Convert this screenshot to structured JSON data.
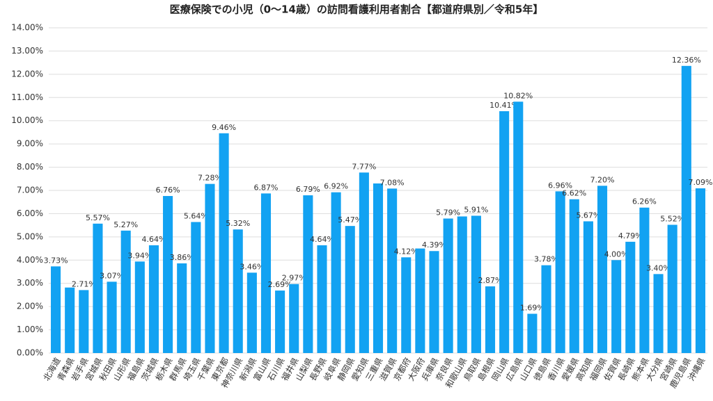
{
  "chart_data": {
    "type": "bar",
    "title": "医療保険での小児（0～14歳）の訪問看護利用者割合【都道府県別／令和5年】",
    "categories": [
      "北海道",
      "青森県",
      "岩手県",
      "宮城県",
      "秋田県",
      "山形県",
      "福島県",
      "茨城県",
      "栃木県",
      "群馬県",
      "埼玉県",
      "千葉県",
      "東京都",
      "神奈川県",
      "新潟県",
      "富山県",
      "石川県",
      "福井県",
      "山梨県",
      "長野県",
      "岐阜県",
      "静岡県",
      "愛知県",
      "三重県",
      "滋賀県",
      "京都府",
      "大阪府",
      "兵庫県",
      "奈良県",
      "和歌山県",
      "鳥取県",
      "島根県",
      "岡山県",
      "広島県",
      "山口県",
      "徳島県",
      "香川県",
      "愛媛県",
      "高知県",
      "福岡県",
      "佐賀県",
      "長崎県",
      "熊本県",
      "大分県",
      "宮崎県",
      "鹿児島県",
      "沖縄県"
    ],
    "values": [
      3.73,
      2.82,
      2.71,
      5.57,
      3.07,
      5.27,
      3.94,
      4.64,
      6.76,
      3.86,
      5.64,
      7.28,
      9.46,
      5.32,
      3.46,
      6.87,
      2.69,
      2.97,
      6.79,
      4.64,
      6.92,
      5.47,
      7.77,
      7.3,
      7.08,
      4.12,
      4.5,
      4.39,
      5.79,
      5.88,
      5.91,
      2.87,
      10.41,
      10.82,
      1.69,
      3.78,
      6.96,
      6.62,
      5.67,
      7.2,
      4.0,
      4.79,
      6.26,
      3.4,
      5.52,
      12.36,
      7.09
    ],
    "value_labels": [
      "3.73%",
      null,
      "2.71%",
      "5.57%",
      "3.07%",
      "5.27%",
      "3.94%",
      "4.64%",
      "6.76%",
      "3.86%",
      "5.64%",
      "7.28%",
      "9.46%",
      "5.32%",
      "3.46%",
      "6.87%",
      "2.69%",
      "2.97%",
      "6.79%",
      "4.64%",
      "6.92%",
      "5.47%",
      "7.77%",
      null,
      "7.08%",
      "4.12%",
      null,
      "4.39%",
      "5.79%",
      null,
      "5.91%",
      "2.87%",
      "10.41%",
      "10.82%",
      "1.69%",
      "3.78%",
      "6.96%",
      "6.62%",
      "5.67%",
      "7.20%",
      "4.00%",
      "4.79%",
      "6.26%",
      "3.40%",
      "5.52%",
      "12.36%",
      "7.09%"
    ],
    "color": "#12a2f2",
    "ylim": [
      0,
      14
    ],
    "yticks": [
      {
        "value": 0,
        "label": "0.00%"
      },
      {
        "value": 1,
        "label": "1.00%"
      },
      {
        "value": 2,
        "label": "2.00%"
      },
      {
        "value": 3,
        "label": "3.00%"
      },
      {
        "value": 4,
        "label": "4.00%"
      },
      {
        "value": 5,
        "label": "5.00%"
      },
      {
        "value": 6,
        "label": "6.00%"
      },
      {
        "value": 7,
        "label": "7.00%"
      },
      {
        "value": 8,
        "label": "8.00%"
      },
      {
        "value": 9,
        "label": "9.00%"
      },
      {
        "value": 10,
        "label": "10.00%"
      },
      {
        "value": 11,
        "label": "11.00%"
      },
      {
        "value": 12,
        "label": "12.00%"
      },
      {
        "value": 13,
        "label": "13.00%"
      },
      {
        "value": 14,
        "label": "14.00%"
      }
    ],
    "grid": true
  }
}
